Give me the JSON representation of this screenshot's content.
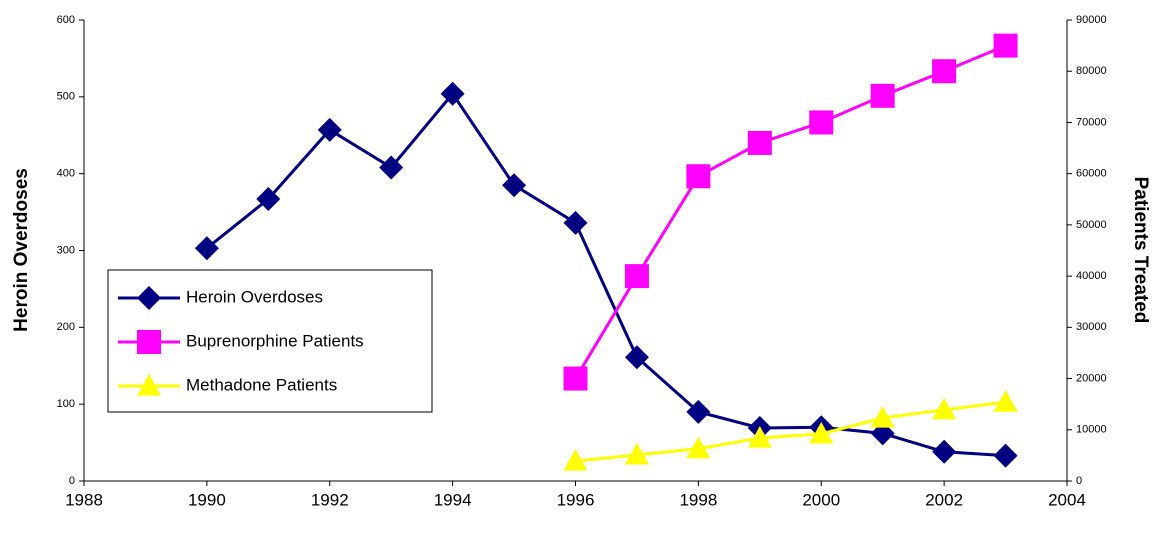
{
  "chart_data": {
    "type": "line",
    "x": [
      1990,
      1991,
      1992,
      1993,
      1994,
      1995,
      1996,
      1997,
      1998,
      1999,
      2000,
      2001,
      2002,
      2003
    ],
    "series": [
      {
        "name": "Heroin Overdoses",
        "color": "#000080",
        "marker": "diamond",
        "values": [
          303,
          367,
          457,
          408,
          504,
          385,
          336,
          161,
          90,
          69,
          70,
          62,
          38,
          33
        ]
      },
      {
        "name": "Buprenorphine Patients",
        "color": "#ff00ff",
        "marker": "square",
        "axis": "y2",
        "values": [
          null,
          null,
          null,
          null,
          null,
          null,
          20000,
          40000,
          59500,
          66000,
          70000,
          75200,
          80000,
          85000
        ]
      },
      {
        "name": "Methadone Patients",
        "color": "#ffff00",
        "marker": "triangle",
        "axis": "y2",
        "values": [
          null,
          null,
          null,
          null,
          null,
          null,
          3900,
          5100,
          6300,
          8400,
          9200,
          12300,
          13900,
          15400
        ]
      }
    ],
    "ylabel": "Heroin Overdoses",
    "y2label": "Patients Treated",
    "xlim": [
      1988,
      2004
    ],
    "xticks": [
      1988,
      1990,
      1992,
      1994,
      1996,
      1998,
      2000,
      2002,
      2004
    ],
    "ylim": [
      0,
      600
    ],
    "yticks": [
      0,
      100,
      200,
      300,
      400,
      500,
      600
    ],
    "y2lim": [
      0,
      90000
    ],
    "y2ticks": [
      0,
      10000,
      20000,
      30000,
      40000,
      50000,
      60000,
      70000,
      80000,
      90000
    ]
  }
}
